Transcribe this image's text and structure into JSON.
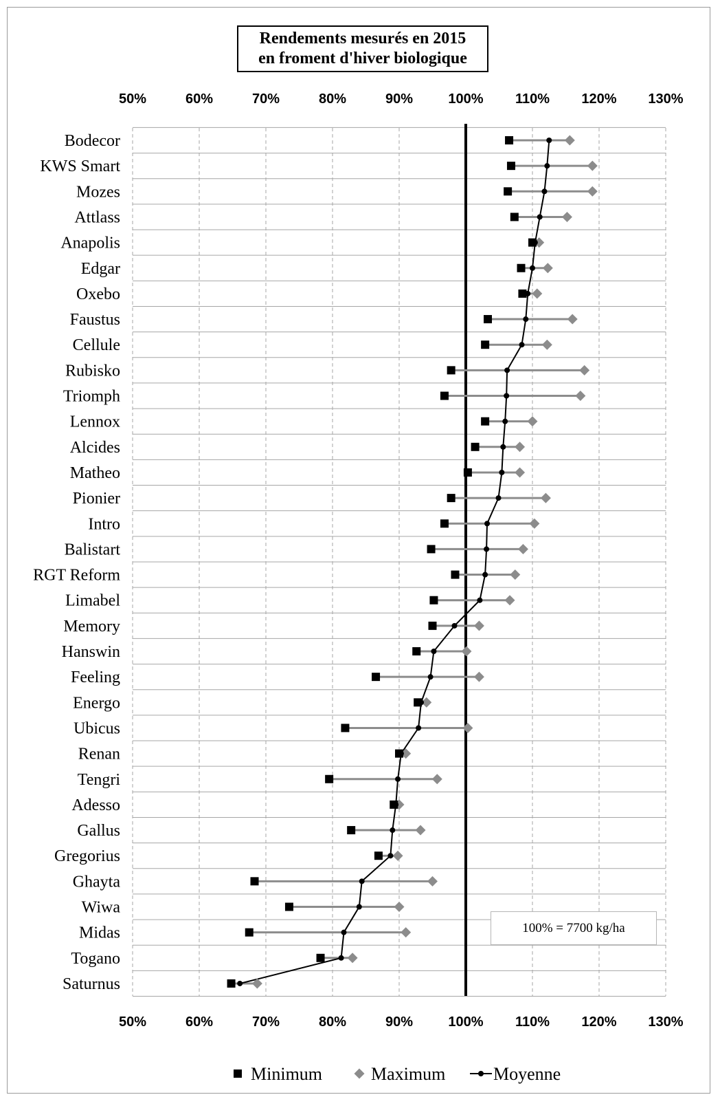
{
  "chart_data": {
    "type": "scatter",
    "title_lines": [
      "Rendements mesurés en 2015",
      "en froment d'hiver biologique"
    ],
    "x_ticks": [
      "50%",
      "60%",
      "70%",
      "80%",
      "90%",
      "100%",
      "110%",
      "120%",
      "130%"
    ],
    "xlim": [
      50,
      130
    ],
    "reference_line": 100,
    "grid": true,
    "annotation": "100% = 7700 kg/ha",
    "legend_position": "bottom",
    "legend": [
      "Minimum",
      "Maximum",
      "Moyenne"
    ],
    "colors": {
      "minimum": "#000000",
      "maximum": "#8c8c8c",
      "moyenne": "#000000",
      "range": "#8c8c8c",
      "grid": "#a6a6a6"
    },
    "categories": [
      "Bodecor",
      "KWS Smart",
      "Mozes",
      "Attlass",
      "Anapolis",
      "Edgar",
      "Oxebo",
      "Faustus",
      "Cellule",
      "Rubisko",
      "Triomph",
      "Lennox",
      "Alcides",
      "Matheo",
      "Pionier",
      "Intro",
      "Balistart",
      "RGT Reform",
      "Limabel",
      "Memory",
      "Hanswin",
      "Feeling",
      "Energo",
      "Ubicus",
      "Renan",
      "Tengri",
      "Adesso",
      "Gallus",
      "Gregorius",
      "Ghayta",
      "Wiwa",
      "Midas",
      "Togano",
      "Saturnus"
    ],
    "series": [
      {
        "name": "Minimum",
        "values": [
          106.5,
          106.8,
          106.3,
          107.3,
          110,
          108.3,
          108.5,
          103.3,
          102.9,
          97.8,
          96.8,
          102.9,
          101.4,
          100.3,
          97.8,
          96.8,
          94.8,
          98.4,
          95.2,
          95.0,
          92.6,
          86.5,
          92.8,
          81.9,
          90,
          79.5,
          89.2,
          82.8,
          86.9,
          68.3,
          73.5,
          67.5,
          78.2,
          64.8
        ]
      },
      {
        "name": "Maximum",
        "values": [
          115.6,
          119,
          119,
          115.2,
          111.0,
          112.3,
          110.7,
          116,
          112.2,
          117.8,
          117.2,
          110.0,
          108.1,
          108.1,
          112.0,
          110.3,
          108.6,
          107.4,
          106.6,
          102.0,
          100.1,
          102.0,
          94.1,
          100.3,
          91.0,
          95.7,
          90.0,
          93.2,
          89.8,
          95.0,
          90.0,
          91.0,
          83.0,
          68.7
        ]
      },
      {
        "name": "Moyenne",
        "values": [
          112.5,
          112.2,
          111.8,
          111.1,
          110.4,
          110.0,
          109.3,
          109.0,
          108.4,
          106.2,
          106.1,
          105.9,
          105.6,
          105.4,
          104.9,
          103.2,
          103.1,
          102.9,
          102.1,
          98.3,
          95.2,
          94.7,
          93.3,
          92.9,
          90.3,
          89.8,
          89.5,
          89.0,
          88.7,
          84.4,
          84.0,
          81.7,
          81.3,
          66.1
        ]
      }
    ]
  }
}
